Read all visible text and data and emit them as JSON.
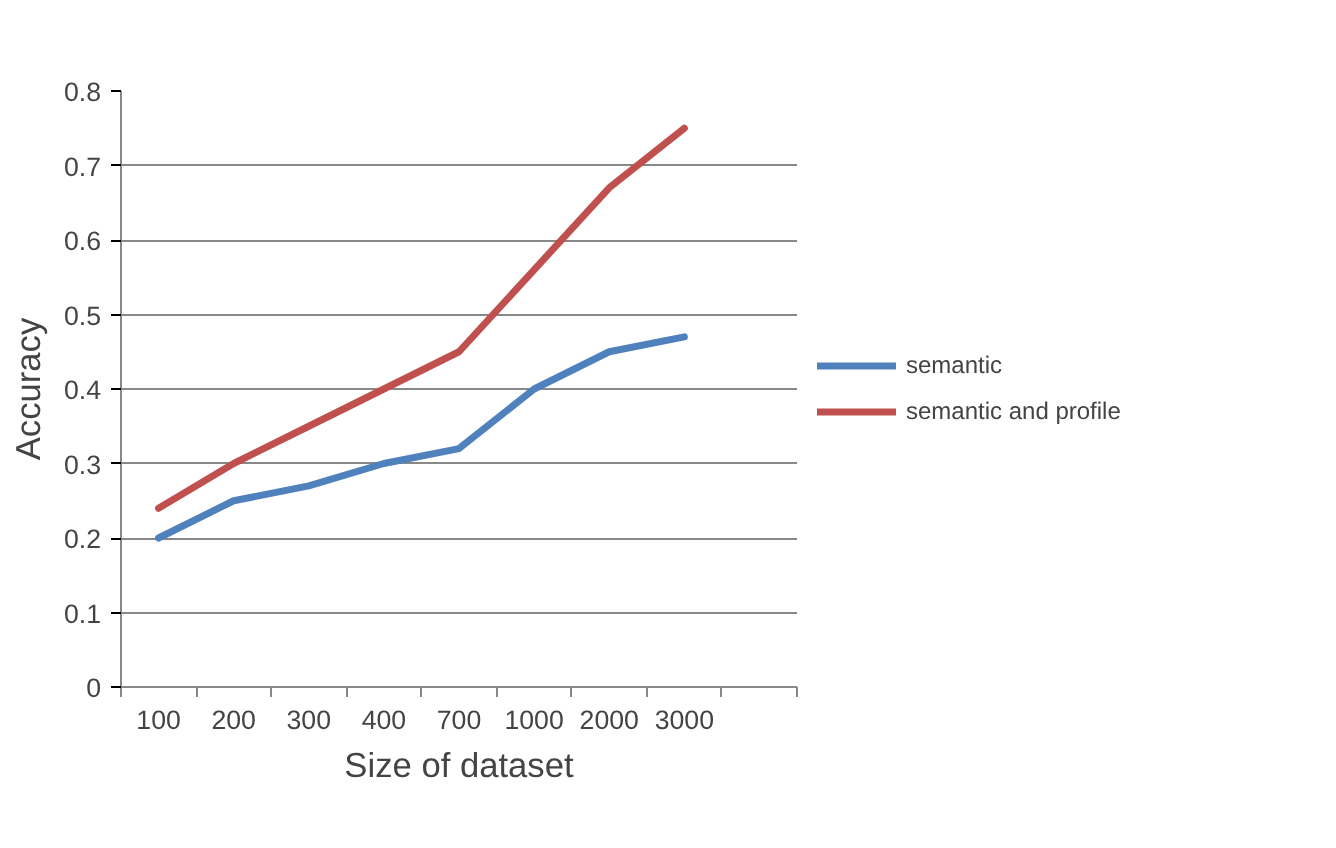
{
  "chart_data": {
    "type": "line",
    "xlabel": "Size of dataset",
    "ylabel": "Accuracy",
    "categories": [
      "100",
      "200",
      "300",
      "400",
      "700",
      "1000",
      "2000",
      "3000",
      null
    ],
    "series": [
      {
        "name": "semantic",
        "color": "#4f81bd",
        "values": [
          0.2,
          0.25,
          0.27,
          0.3,
          0.32,
          0.4,
          0.45,
          0.47,
          null
        ]
      },
      {
        "name": "semantic and profile",
        "color": "#c0504d",
        "values": [
          0.24,
          0.3,
          0.35,
          0.4,
          0.45,
          0.56,
          0.67,
          0.75,
          null
        ]
      }
    ],
    "ylim": [
      0,
      0.8
    ],
    "yticks": [
      0,
      0.1,
      0.2,
      0.3,
      0.4,
      0.5,
      0.6,
      0.7,
      0.8
    ],
    "grid": "y",
    "legend": "right",
    "marker": "none",
    "line_style": "solid"
  }
}
